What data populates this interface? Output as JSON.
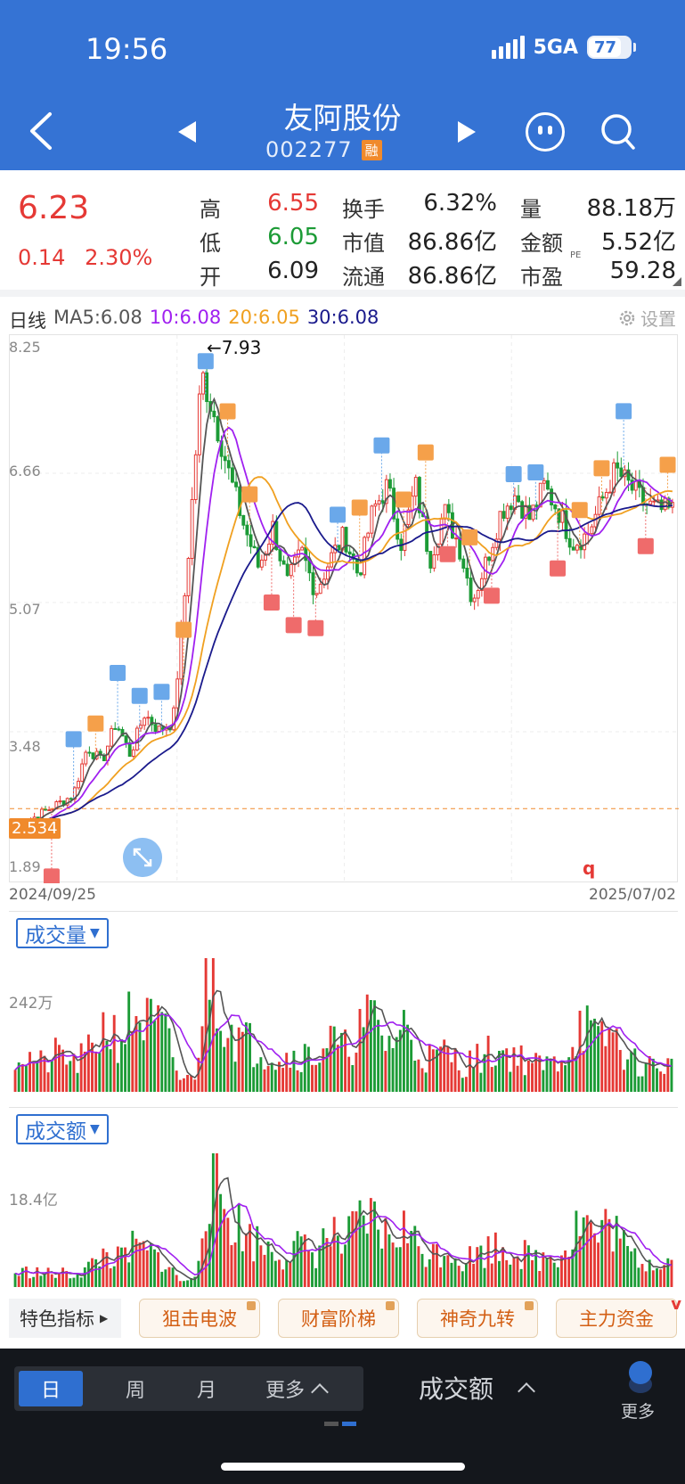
{
  "status_bar": {
    "time": "19:56",
    "network": "5GA",
    "battery": "77"
  },
  "header": {
    "title": "友阿股份",
    "code": "002277",
    "badge": "融"
  },
  "quote": {
    "price": "6.23",
    "change": "0.14",
    "change_pct": "2.30%",
    "stats": [
      {
        "label": "高",
        "value": "6.55",
        "color": "#e53935"
      },
      {
        "label": "换手",
        "value": "6.32%",
        "color": "#222222"
      },
      {
        "label": "量",
        "value": "88.18万",
        "color": "#222222"
      },
      {
        "label": "低",
        "value": "6.05",
        "color": "#1c9b36"
      },
      {
        "label": "市值",
        "value": "86.86亿",
        "color": "#222222"
      },
      {
        "label": "金额",
        "value": "5.52亿",
        "color": "#222222"
      },
      {
        "label": "开",
        "value": "6.09",
        "color": "#222222"
      },
      {
        "label": "流通",
        "value": "86.86亿",
        "color": "#222222"
      },
      {
        "label": "市盈",
        "value": "59.28",
        "color": "#222222"
      }
    ],
    "pe_sup": "PE"
  },
  "ma_legend": {
    "period": "日线",
    "ma5": "MA5:6.08",
    "ma10": "10:6.08",
    "ma20": "20:6.05",
    "ma30": "30:6.08",
    "colors": {
      "ma5": "#555555",
      "ma10": "#a020f0",
      "ma20": "#f0a020",
      "ma30": "#1a1a8c"
    },
    "settings": "设置"
  },
  "chart_data": [
    {
      "type": "candlestick",
      "title": "",
      "price_ticks": [
        "8.25",
        "6.66",
        "5.07",
        "3.48",
        "1.89"
      ],
      "ylim": [
        1.89,
        8.25
      ],
      "x_start": "2024/09/25",
      "x_end": "2025/07/02",
      "max_label": "7.93",
      "current_tag": "2.534",
      "marker": "q",
      "trend_keypoints": [
        2.3,
        2.4,
        2.5,
        2.6,
        2.7,
        3.3,
        3.1,
        3.6,
        3.2,
        3.7,
        3.5,
        3.6,
        5.5,
        7.9,
        7.3,
        6.6,
        6.0,
        5.5,
        6.0,
        5.3,
        5.7,
        5.2,
        5.6,
        5.9,
        5.4,
        6.2,
        6.5,
        5.8,
        6.5,
        5.6,
        6.2,
        5.8,
        5.1,
        5.6,
        6.2,
        6.4,
        6.1,
        6.5,
        6.2,
        5.8,
        5.9,
        6.3,
        6.7,
        6.5,
        6.3,
        6.2,
        6.2
      ]
    },
    {
      "type": "bar",
      "title": "成交量",
      "tick": "242万",
      "trend_keypoints": [
        0.3,
        0.25,
        0.2,
        0.3,
        0.2,
        0.3,
        0.5,
        0.4,
        0.6,
        0.5,
        0.45,
        0.1,
        0.1,
        1.0,
        0.6,
        0.4,
        0.35,
        0.3,
        0.25,
        0.3,
        0.25,
        0.4,
        0.3,
        0.45,
        0.55,
        0.35,
        0.5,
        0.3,
        0.25,
        0.3,
        0.2,
        0.25,
        0.3,
        0.3,
        0.25,
        0.2,
        0.2,
        0.3,
        0.55,
        0.35,
        0.45,
        0.25,
        0.2,
        0.2,
        0.2
      ]
    },
    {
      "type": "bar",
      "title": "成交额",
      "tick": "18.4亿",
      "trend_keypoints": [
        0.1,
        0.12,
        0.1,
        0.1,
        0.1,
        0.15,
        0.25,
        0.2,
        0.3,
        0.25,
        0.2,
        0.05,
        0.05,
        0.9,
        0.6,
        0.45,
        0.35,
        0.3,
        0.25,
        0.3,
        0.25,
        0.4,
        0.3,
        0.45,
        0.5,
        0.35,
        0.45,
        0.3,
        0.25,
        0.3,
        0.2,
        0.25,
        0.3,
        0.3,
        0.25,
        0.2,
        0.25,
        0.3,
        0.55,
        0.35,
        0.5,
        0.25,
        0.2,
        0.2,
        0.2
      ]
    }
  ],
  "indicators": {
    "title": "特色指标",
    "items": [
      "狙击电波",
      "财富阶梯",
      "神奇九转",
      "主力资金"
    ],
    "more_mark": "v"
  },
  "bottom": {
    "periods": [
      "日",
      "周",
      "月"
    ],
    "more": "更多",
    "indicator": "成交额",
    "more_label": "更多"
  }
}
